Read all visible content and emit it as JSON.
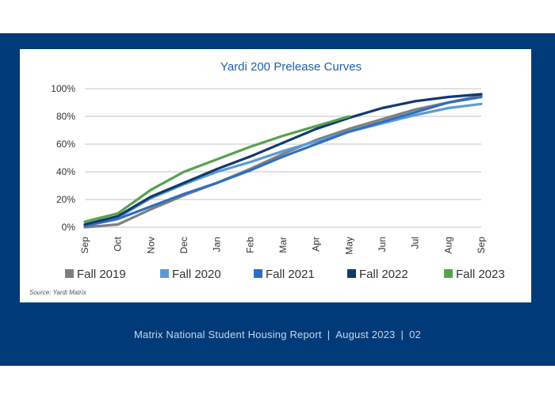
{
  "chart_data": {
    "type": "line",
    "title": "Yardi 200 Prelease Curves",
    "xlabel": "",
    "ylabel": "",
    "categories": [
      "Sep",
      "Oct",
      "Nov",
      "Dec",
      "Jan",
      "Feb",
      "Mar",
      "Apr",
      "May",
      "Jun",
      "Jul",
      "Aug",
      "Sep"
    ],
    "yticks": [
      "0%",
      "20%",
      "40%",
      "60%",
      "80%",
      "100%"
    ],
    "ylim": [
      0,
      100
    ],
    "grid": true,
    "legend_position": "bottom",
    "series": [
      {
        "name": "Fall 2019",
        "color": "#7f7f7f",
        "values": [
          0,
          2,
          13,
          23,
          32,
          42,
          53,
          63,
          71,
          78,
          85,
          90,
          95
        ]
      },
      {
        "name": "Fall 2020",
        "color": "#5b9bd5",
        "values": [
          2,
          7,
          21,
          31,
          40,
          47,
          55,
          62,
          69,
          75,
          81,
          86,
          89
        ]
      },
      {
        "name": "Fall 2021",
        "color": "#2f6fbf",
        "values": [
          1,
          6,
          15,
          24,
          32,
          41,
          51,
          60,
          69,
          76,
          83,
          90,
          94
        ]
      },
      {
        "name": "Fall 2022",
        "color": "#13386e",
        "values": [
          2,
          8,
          22,
          32,
          42,
          51,
          61,
          71,
          79,
          86,
          91,
          94,
          96
        ]
      },
      {
        "name": "Fall 2023",
        "color": "#57a24f",
        "values": [
          4,
          10,
          27,
          40,
          49,
          58,
          66,
          73,
          80,
          null,
          null,
          null,
          null
        ]
      }
    ],
    "source": "Source: Yardi Matrix"
  },
  "footer": {
    "report": "Matrix National Student Housing Report",
    "sep": "|",
    "date": "August 2023",
    "page": "02"
  }
}
